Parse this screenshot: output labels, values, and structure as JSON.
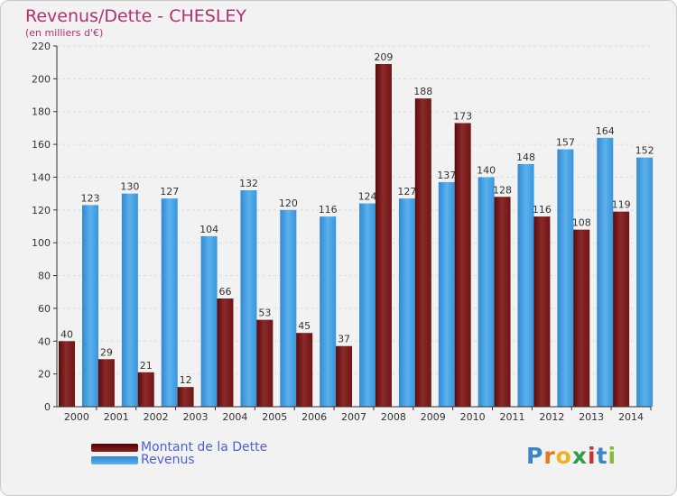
{
  "title": "Revenus/Dette - CHESLEY",
  "subtitle": "(en milliers d'€)",
  "colors": {
    "title": "#b03070",
    "debt": "#8b1a1a",
    "revenue": "#3a9ae0",
    "legend_text": "#4f5fd6"
  },
  "legend": [
    {
      "label": "Montant de la Dette",
      "color": "#8b1a1a"
    },
    {
      "label": "Revenus",
      "color": "#3a9ae0"
    }
  ],
  "logo": {
    "letters": [
      "P",
      "r",
      "o",
      "x",
      "i",
      "t",
      "i"
    ],
    "colors": [
      "#3a86c8",
      "#e07a1a",
      "#f0b020",
      "#2f9e4a",
      "#d03030",
      "#3a86c8",
      "#8ab83a"
    ]
  },
  "chart_data": {
    "type": "bar",
    "categories": [
      "2000",
      "2001",
      "2002",
      "2003",
      "2004",
      "2005",
      "2006",
      "2007",
      "2008",
      "2009",
      "2010",
      "2011",
      "2012",
      "2013",
      "2014"
    ],
    "series": [
      {
        "name": "Montant de la Dette",
        "values": [
          40,
          29,
          21,
          12,
          66,
          53,
          45,
          37,
          209,
          188,
          173,
          128,
          116,
          108,
          119
        ]
      },
      {
        "name": "Revenus",
        "values": [
          123,
          130,
          127,
          104,
          132,
          120,
          116,
          124,
          127,
          137,
          140,
          148,
          157,
          164,
          152
        ]
      }
    ],
    "ylim": [
      0,
      220
    ],
    "yticks": [
      0,
      20,
      40,
      60,
      80,
      100,
      120,
      140,
      160,
      180,
      200,
      220
    ],
    "grid": true,
    "legend_position": "bottom-left"
  }
}
